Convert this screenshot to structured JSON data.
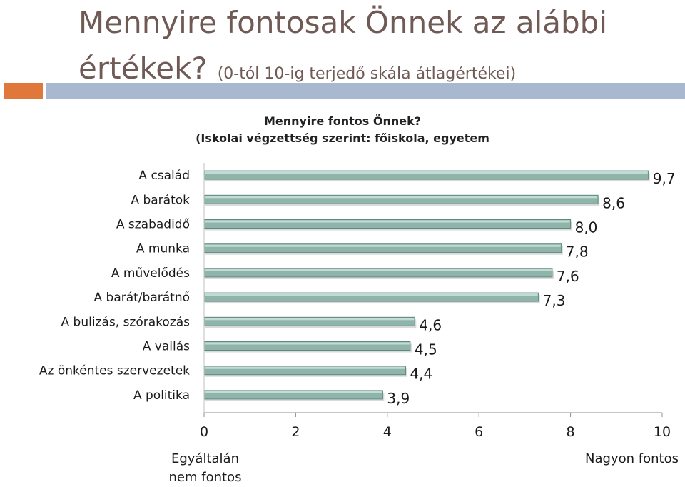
{
  "slide": {
    "title_main": "Mennyire fontosak Önnek az alábbi értékek?",
    "title_sub": "(0-tól 10-ig terjedő skála átlagértékei)"
  },
  "colors": {
    "accent_orange": "#e0783c",
    "accent_blue": "#a7b8cf",
    "bar_fill": "#8fb5ab",
    "bar_edge": "#5f8a80"
  },
  "chart_data": {
    "type": "bar",
    "orientation": "horizontal",
    "title": "Mennyire fontos Önnek?\n(Iskolai végzettség szerint: főiskola, egyetem",
    "categories": [
      "A család",
      "A barátok",
      "A szabadidő",
      "A munka",
      "A művelődés",
      "A barát/barátnő",
      "A bulizás, szórakozás",
      "A vallás",
      "Az önkéntes szervezetek",
      "A politika"
    ],
    "values": [
      9.7,
      8.6,
      8.0,
      7.8,
      7.6,
      7.3,
      4.6,
      4.5,
      4.4,
      3.9
    ],
    "value_labels": [
      "9,7",
      "8,6",
      "8,0",
      "7,8",
      "7,6",
      "7,3",
      "4,6",
      "4,5",
      "4,4",
      "3,9"
    ],
    "xlim": [
      0,
      10
    ],
    "xticks": [
      0,
      2,
      4,
      6,
      8,
      10
    ],
    "xtick_labels": [
      "0",
      "2",
      "4",
      "6",
      "8",
      "10"
    ],
    "x_min_label": "Egyáltalán nem fontos",
    "x_max_label": "Nagyon fontos",
    "grid": false,
    "legend": "none"
  }
}
